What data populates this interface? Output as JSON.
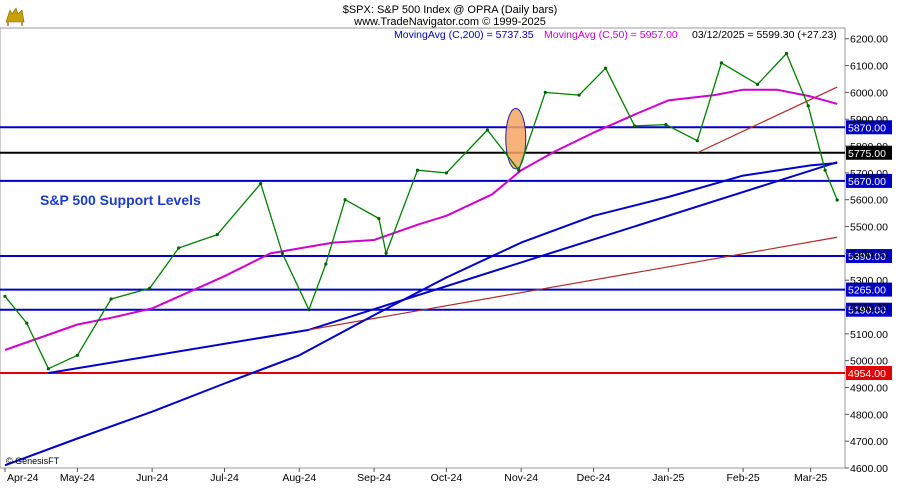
{
  "chart_data": {
    "type": "line",
    "title": "$SPX:  S&P 500 Index @ OPRA  (Daily bars)",
    "subtitle": "www.TradeNavigator.com © 1999-2025",
    "annotation": "S&P 500 Support Levels",
    "watermark": "© GenesisFT",
    "price_label": "03/12/2025 = 5599.30 (+27.23)",
    "ylim": [
      4600,
      6240
    ],
    "y_ticks": [
      4600,
      4700,
      4800,
      4900,
      5000,
      5100,
      5200,
      5300,
      5400,
      5500,
      5600,
      5700,
      5800,
      5900,
      6000,
      6100,
      6200
    ],
    "y_tick_labels": [
      "4600.00",
      "4700.00",
      "4800.00",
      "4900.00",
      "5000.00",
      "5100.00",
      "5200.00",
      "5300.00",
      "5400.00",
      "5500.00",
      "5600.00",
      "5700.00",
      "5800.00",
      "5900.00",
      "6000.00",
      "6100.00",
      "6200.00"
    ],
    "x_tick_labels": [
      "Apr-24",
      "May-24",
      "Jun-24",
      "Jul-24",
      "Aug-24",
      "Sep-24",
      "Oct-24",
      "Nov-24",
      "Dec-24",
      "Jan-25",
      "Feb-25",
      "Mar-25"
    ],
    "xlim": [
      "2024-04-01",
      "2025-03-14"
    ],
    "x_ticks": [
      "2024-04-01",
      "2024-05-01",
      "2024-06-01",
      "2024-07-01",
      "2024-08-01",
      "2024-09-01",
      "2024-10-01",
      "2024-11-01",
      "2024-12-01",
      "2025-01-01",
      "2025-02-01",
      "2025-03-01"
    ],
    "series": [
      {
        "name": "MovingAvg (C,200) = 5737.35",
        "color": "#0000c8",
        "x": [
          "2024-04-01",
          "2024-05-01",
          "2024-06-01",
          "2024-07-01",
          "2024-08-01",
          "2024-09-01",
          "2024-10-01",
          "2024-11-01",
          "2024-12-01",
          "2025-01-01",
          "2025-02-01",
          "2025-03-01",
          "2025-03-12"
        ],
        "values": [
          4610,
          4710,
          4810,
          4915,
          5020,
          5170,
          5310,
          5440,
          5540,
          5610,
          5690,
          5728,
          5737
        ]
      },
      {
        "name": "MovingAvg (C,50) = 5957.00",
        "color": "#d000d0",
        "x": [
          "2024-04-01",
          "2024-05-01",
          "2024-05-15",
          "2024-06-01",
          "2024-07-01",
          "2024-07-20",
          "2024-08-15",
          "2024-09-01",
          "2024-09-20",
          "2024-10-01",
          "2024-10-20",
          "2024-11-01",
          "2024-11-15",
          "2024-12-01",
          "2024-12-20",
          "2025-01-01",
          "2025-01-20",
          "2025-02-01",
          "2025-02-15",
          "2025-03-01",
          "2025-03-12"
        ],
        "values": [
          5040,
          5135,
          5160,
          5195,
          5315,
          5400,
          5440,
          5450,
          5510,
          5540,
          5620,
          5710,
          5780,
          5850,
          5925,
          5970,
          5990,
          6010,
          6010,
          5985,
          5957
        ]
      },
      {
        "name": "Close",
        "color": "#008000",
        "x": [
          "2024-04-01",
          "2024-04-10",
          "2024-04-19",
          "2024-05-01",
          "2024-05-15",
          "2024-05-31",
          "2024-06-12",
          "2024-06-28",
          "2024-07-16",
          "2024-07-25",
          "2024-08-05",
          "2024-08-12",
          "2024-08-20",
          "2024-09-03",
          "2024-09-06",
          "2024-09-19",
          "2024-10-01",
          "2024-10-18",
          "2024-10-31",
          "2024-11-11",
          "2024-11-25",
          "2024-12-06",
          "2024-12-18",
          "2024-12-31",
          "2025-01-13",
          "2025-01-23",
          "2025-02-07",
          "2025-02-19",
          "2025-02-28",
          "2025-03-07",
          "2025-03-12"
        ],
        "values": [
          5240,
          5140,
          4970,
          5020,
          5230,
          5270,
          5420,
          5470,
          5660,
          5400,
          5190,
          5360,
          5600,
          5530,
          5400,
          5710,
          5700,
          5860,
          5710,
          6000,
          5990,
          6090,
          5875,
          5880,
          5820,
          6110,
          6030,
          6145,
          5950,
          5710,
          5599
        ]
      }
    ],
    "support_levels": [
      {
        "label": "5870.00",
        "value": 5870,
        "color": "#0000c8"
      },
      {
        "label": "5775.00",
        "value": 5775,
        "color": "#000000"
      },
      {
        "label": "5670.00",
        "value": 5670,
        "color": "#0000c8"
      },
      {
        "label": "5390.00",
        "value": 5390,
        "color": "#0000c8"
      },
      {
        "label": "5265.00",
        "value": 5265,
        "color": "#0000c8"
      },
      {
        "label": "5190.00",
        "value": 5190,
        "color": "#0000c8"
      },
      {
        "label": "4954.00",
        "value": 4954,
        "color": "#e00000"
      }
    ],
    "trend_lines": [
      {
        "color": "#0000c8",
        "x": [
          "2024-04-19",
          "2024-08-05"
        ],
        "values": [
          4954,
          5115
        ]
      },
      {
        "color": "#0000c8",
        "x": [
          "2024-08-05",
          "2025-03-12"
        ],
        "values": [
          5115,
          5740
        ]
      },
      {
        "color": "#b42828",
        "x": [
          "2024-08-05",
          "2025-03-12"
        ],
        "values": [
          5115,
          5460
        ]
      },
      {
        "color": "#b42828",
        "x": [
          "2025-01-13",
          "2025-03-12"
        ],
        "values": [
          5775,
          6020
        ]
      }
    ],
    "highlight_ellipse": {
      "x": "2024-10-31",
      "y_range": [
        5715,
        5940
      ],
      "color": "#f4a460"
    },
    "grid": false
  }
}
